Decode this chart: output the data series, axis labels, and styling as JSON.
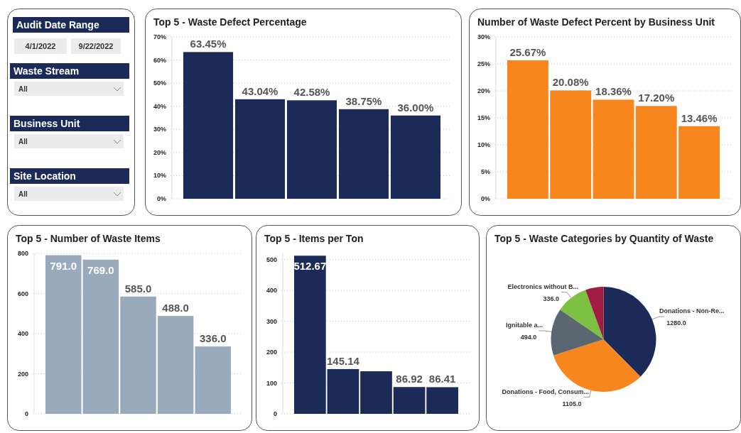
{
  "chart_data": [
    {
      "type": "other",
      "annotations": [
        "Audit Date Range",
        "4/1/2022",
        "9/22/2022",
        "Waste Stream",
        "All",
        "Business Unit",
        "All",
        "Site Location",
        "All"
      ]
    },
    {
      "type": "bar",
      "title": "Top 5 - Waste Defect Percentage",
      "categories": [
        null,
        null,
        null,
        null,
        null
      ],
      "values": [
        63.45,
        43.04,
        42.58,
        38.75,
        36.0
      ],
      "value_labels": [
        "63.45%",
        "43.04%",
        "42.58%",
        "38.75%",
        "36.00%"
      ],
      "color": "#1b2a56",
      "ylim": [
        0,
        70
      ],
      "yticks": [
        {
          "value": 0,
          "label": "0%"
        },
        {
          "value": 10,
          "label": "10%"
        },
        {
          "value": 20,
          "label": "20%"
        },
        {
          "value": 30,
          "label": "30%"
        },
        {
          "value": 40,
          "label": "40%"
        },
        {
          "value": 50,
          "label": "50%"
        },
        {
          "value": 60,
          "label": "60%"
        },
        {
          "value": 70,
          "label": "70%"
        }
      ],
      "grid": "y"
    },
    {
      "type": "bar",
      "title": "Number of Waste Defect Percent by Business Unit",
      "categories": [
        null,
        null,
        null,
        null,
        null
      ],
      "values": [
        25.67,
        20.08,
        18.36,
        17.2,
        13.46
      ],
      "value_labels": [
        "25.67%",
        "20.08%",
        "18.36%",
        "17.20%",
        "13.46%"
      ],
      "color": "#f7861f",
      "ylim": [
        0,
        30
      ],
      "yticks": [
        {
          "value": 0,
          "label": "0%"
        },
        {
          "value": 5,
          "label": "5%"
        },
        {
          "value": 10,
          "label": "10%"
        },
        {
          "value": 15,
          "label": "15%"
        },
        {
          "value": 20,
          "label": "20%"
        },
        {
          "value": 25,
          "label": "25%"
        },
        {
          "value": 30,
          "label": "30%"
        }
      ],
      "grid": "y"
    },
    {
      "type": "bar",
      "title": "Top 5 - Number of Waste Items",
      "categories": [
        null,
        null,
        null,
        null,
        null
      ],
      "values": [
        791.0,
        769.0,
        585.0,
        488.0,
        336.0
      ],
      "value_labels": [
        "791.0",
        "769.0",
        "585.0",
        "488.0",
        "336.0"
      ],
      "color": "#9aaabd",
      "ylim": [
        0,
        800
      ],
      "yticks": [
        0,
        200,
        400,
        600,
        800
      ],
      "grid": "y"
    },
    {
      "type": "bar",
      "title": "Top 5 - Items per Ton",
      "categories": [
        null,
        null,
        null,
        null,
        null
      ],
      "values": [
        512.67,
        145.14,
        138,
        86.92,
        86.41
      ],
      "value_labels": [
        "512.67",
        "145.14",
        null,
        "86.92",
        "86.41"
      ],
      "color": "#1b2a56",
      "ylim": [
        0,
        520
      ],
      "yticks": [
        0,
        100,
        200,
        300,
        400,
        500
      ],
      "grid": "y"
    },
    {
      "type": "pie",
      "title": "Top 5 - Waste Categories by Quantity of Waste",
      "categories": [
        "Donations - Non-Re...",
        "Donations - Food, Consum...",
        "Ignitable a...",
        "Electronics without B...",
        null
      ],
      "values": [
        1280.0,
        1105.0,
        494.0,
        336.0,
        190
      ],
      "value_labels": [
        "1280.0",
        "1105.0",
        "494.0",
        "336.0",
        null
      ],
      "colors": [
        "#1b2a56",
        "#f7861f",
        "#5a6670",
        "#7dc143",
        "#a01c44"
      ]
    }
  ]
}
